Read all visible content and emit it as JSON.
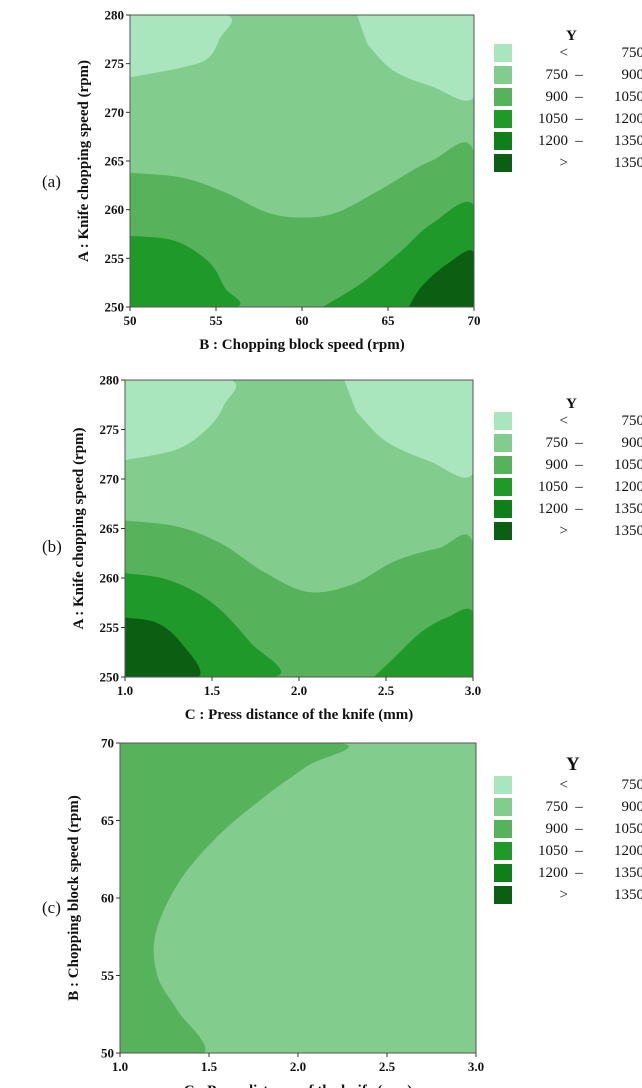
{
  "colors": {
    "lt750": "#aae6bd",
    "b750_900": "#82cd8e",
    "b900_1050": "#56b35c",
    "b1050_1200": "#1f9a2a",
    "b1200_1350": "#0f7f1a",
    "gt1350": "#0b5e12"
  },
  "chart_data": [
    {
      "type": "heatmap",
      "panel_label": "(a)",
      "xlabel": "B : Chopping block speed (rpm)",
      "ylabel": "A : Knife chopping speed (rpm)",
      "xlim": [
        50,
        70
      ],
      "ylim": [
        250,
        280
      ],
      "xticks": [
        "50",
        "55",
        "60",
        "65",
        "70"
      ],
      "yticks": [
        "250",
        "255",
        "260",
        "265",
        "270",
        "275",
        "280"
      ],
      "legend": {
        "title": "Y",
        "entries": [
          {
            "lo": "<",
            "hi": "750",
            "color": "#aae6bd"
          },
          {
            "lo": "750",
            "hi": "900",
            "color": "#82cd8e"
          },
          {
            "lo": "900",
            "hi": "1050",
            "color": "#56b35c"
          },
          {
            "lo": "1050",
            "hi": "1200",
            "color": "#1f9a2a"
          },
          {
            "lo": "1200",
            "hi": "1350",
            "color": "#0f7f1a"
          },
          {
            "lo": ">",
            "hi": "1350",
            "color": "#0b5e12"
          }
        ]
      },
      "regions": [
        {
          "band": "<750",
          "color": "#aae6bd",
          "points": [
            [
              50,
              280
            ],
            [
              55.6,
              280
            ],
            [
              55.2,
              277.5
            ],
            [
              54.5,
              275.5
            ],
            [
              53,
              274.6
            ],
            [
              50,
              273.6
            ]
          ]
        },
        {
          "band": "<750",
          "color": "#aae6bd",
          "points": [
            [
              63.2,
              280
            ],
            [
              70,
              280
            ],
            [
              70,
              271.6
            ],
            [
              67.5,
              272.7
            ],
            [
              65.3,
              274.3
            ],
            [
              63.8,
              277
            ]
          ]
        },
        {
          "band": "900-1050",
          "color": "#56b35c",
          "points": [
            [
              50,
              263.8
            ],
            [
              53,
              263.3
            ],
            [
              55.5,
              261.8
            ],
            [
              58,
              259.7
            ],
            [
              60,
              259.2
            ],
            [
              62,
              259.7
            ],
            [
              64.5,
              262
            ],
            [
              67.5,
              265
            ],
            [
              70,
              265.9
            ],
            [
              70,
              250
            ],
            [
              50,
              250
            ]
          ]
        },
        {
          "band": "1050-1200",
          "color": "#1f9a2a",
          "points": [
            [
              50,
              257.3
            ],
            [
              52.6,
              256.8
            ],
            [
              54.6,
              254.6
            ],
            [
              55.5,
              252
            ],
            [
              56.1,
              250
            ],
            [
              50,
              250
            ]
          ]
        },
        {
          "band": "1050-1200",
          "color": "#1f9a2a",
          "points": [
            [
              61.2,
              250
            ],
            [
              63.5,
              252.5
            ],
            [
              65.8,
              255.8
            ],
            [
              67.5,
              258.5
            ],
            [
              70,
              260.4
            ],
            [
              70,
              250
            ]
          ]
        },
        {
          "band": ">1350",
          "color": "#0b5e12",
          "points": [
            [
              66.2,
              250
            ],
            [
              67,
              252.2
            ],
            [
              68.5,
              254.5
            ],
            [
              70,
              255.6
            ],
            [
              70,
              250
            ]
          ]
        }
      ]
    },
    {
      "type": "heatmap",
      "panel_label": "(b)",
      "xlabel": "C : Press distance of the knife (mm)",
      "ylabel": "A : Knife chopping speed (rpm)",
      "xlim": [
        1.0,
        3.0
      ],
      "ylim": [
        250,
        280
      ],
      "xticks": [
        "1.0",
        "1.5",
        "2.0",
        "2.5",
        "3.0"
      ],
      "yticks": [
        "250",
        "255",
        "260",
        "265",
        "270",
        "275",
        "280"
      ],
      "legend": {
        "title": "Y",
        "entries": [
          {
            "lo": "<",
            "hi": "750",
            "color": "#aae6bd"
          },
          {
            "lo": "750",
            "hi": "900",
            "color": "#82cd8e"
          },
          {
            "lo": "900",
            "hi": "1050",
            "color": "#56b35c"
          },
          {
            "lo": "1050",
            "hi": "1200",
            "color": "#1f9a2a"
          },
          {
            "lo": "1200",
            "hi": "1350",
            "color": "#0f7f1a"
          },
          {
            "lo": ">",
            "hi": "1350",
            "color": "#0b5e12"
          }
        ]
      },
      "regions": [
        {
          "band": "<750",
          "color": "#aae6bd",
          "points": [
            [
              1.0,
              280
            ],
            [
              1.6,
              280
            ],
            [
              1.57,
              277.5
            ],
            [
              1.48,
              275.2
            ],
            [
              1.3,
              273
            ],
            [
              1.0,
              271.9
            ]
          ]
        },
        {
          "band": "<750",
          "color": "#aae6bd",
          "points": [
            [
              2.26,
              280
            ],
            [
              3.0,
              280
            ],
            [
              3.0,
              270.6
            ],
            [
              2.75,
              271.8
            ],
            [
              2.5,
              273.8
            ],
            [
              2.33,
              276.8
            ]
          ]
        },
        {
          "band": "900-1050",
          "color": "#56b35c",
          "points": [
            [
              1.0,
              265.8
            ],
            [
              1.3,
              265.2
            ],
            [
              1.55,
              263.5
            ],
            [
              1.8,
              260.6
            ],
            [
              2.05,
              258.6
            ],
            [
              2.3,
              259.3
            ],
            [
              2.55,
              261.7
            ],
            [
              2.8,
              263
            ],
            [
              3.0,
              263.5
            ],
            [
              3.0,
              250
            ],
            [
              1.0,
              250
            ]
          ]
        },
        {
          "band": "1050-1200",
          "color": "#1f9a2a",
          "points": [
            [
              1.0,
              260.5
            ],
            [
              1.25,
              259.8
            ],
            [
              1.5,
              257.5
            ],
            [
              1.72,
              253.5
            ],
            [
              1.86,
              250
            ],
            [
              1.0,
              250
            ]
          ]
        },
        {
          "band": "1050-1200",
          "color": "#1f9a2a",
          "points": [
            [
              2.43,
              250
            ],
            [
              2.55,
              252
            ],
            [
              2.7,
              254.5
            ],
            [
              2.85,
              256
            ],
            [
              3.0,
              256.5
            ],
            [
              3.0,
              250
            ]
          ]
        },
        {
          "band": ">1350",
          "color": "#0b5e12",
          "points": [
            [
              1.0,
              256
            ],
            [
              1.18,
              255.5
            ],
            [
              1.32,
              253.5
            ],
            [
              1.42,
              250
            ],
            [
              1.0,
              250
            ]
          ]
        }
      ]
    },
    {
      "type": "heatmap",
      "panel_label": "(c)",
      "xlabel": "C : Press distance of the knife (mm)",
      "ylabel": "B : Chopping block speed (rpm)",
      "xlim": [
        1.0,
        3.0
      ],
      "ylim": [
        50,
        70
      ],
      "xticks": [
        "1.0",
        "1.5",
        "2.0",
        "2.5",
        "3.0"
      ],
      "yticks": [
        "50",
        "55",
        "60",
        "65",
        "70"
      ],
      "legend": {
        "title": "Y",
        "entries": [
          {
            "lo": "<",
            "hi": "750",
            "color": "#aae6bd"
          },
          {
            "lo": "750",
            "hi": "900",
            "color": "#82cd8e"
          },
          {
            "lo": "900",
            "hi": "1050",
            "color": "#56b35c"
          },
          {
            "lo": "1050",
            "hi": "1200",
            "color": "#1f9a2a"
          },
          {
            "lo": "1200",
            "hi": "1350",
            "color": "#0f7f1a"
          },
          {
            "lo": ">",
            "hi": "1350",
            "color": "#0b5e12"
          }
        ]
      },
      "regions": [
        {
          "band": "900-1050",
          "color": "#56b35c",
          "points": [
            [
              1.0,
              70
            ],
            [
              2.23,
              70
            ],
            [
              2.05,
              68.5
            ],
            [
              1.82,
              66.6
            ],
            [
              1.55,
              64
            ],
            [
              1.33,
              61
            ],
            [
              1.2,
              57.7
            ],
            [
              1.21,
              55
            ],
            [
              1.32,
              52.8
            ],
            [
              1.47,
              50
            ],
            [
              1.0,
              50
            ]
          ]
        }
      ]
    }
  ]
}
